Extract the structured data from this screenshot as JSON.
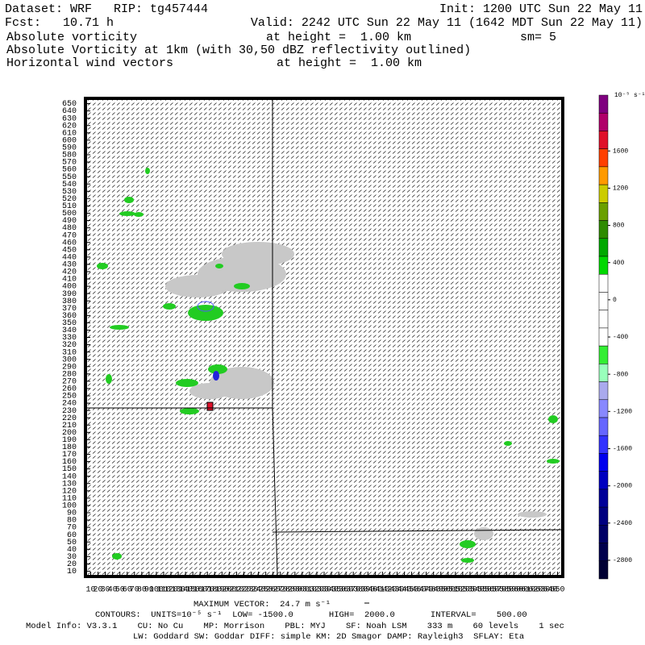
{
  "header": {
    "dataset": "Dataset: WRF   RIP: tg457444",
    "init": "Init: 1200 UTC Sun 22 May 11",
    "fcst": "Fcst:   10.71 h",
    "valid": "Valid: 2242 UTC Sun 22 May 11 (1642 MDT Sun 22 May 11)",
    "field1": "Absolute vorticity",
    "field1_height": "at height =  1.00 km",
    "smoothing": "sm= 5",
    "field2": "Absolute Vorticity at 1km (with 30,50 dBZ reflectivity outlined)",
    "field3": "Horizontal wind vectors",
    "field3_height": "at height =  1.00 km"
  },
  "axes": {
    "lim": [
      5,
      655
    ],
    "yticks": [
      10,
      20,
      30,
      40,
      50,
      60,
      70,
      80,
      90,
      100,
      110,
      120,
      130,
      140,
      150,
      160,
      170,
      180,
      190,
      200,
      210,
      220,
      230,
      240,
      250,
      260,
      270,
      280,
      290,
      300,
      310,
      320,
      330,
      340,
      350,
      360,
      370,
      380,
      390,
      400,
      410,
      420,
      430,
      440,
      450,
      460,
      470,
      480,
      490,
      500,
      510,
      520,
      530,
      540,
      550,
      560,
      570,
      580,
      590,
      600,
      610,
      620,
      630,
      640,
      650
    ],
    "xticks": [
      10,
      20,
      30,
      40,
      50,
      60,
      70,
      80,
      90,
      100,
      110,
      120,
      130,
      140,
      150,
      160,
      170,
      180,
      190,
      200,
      210,
      220,
      230,
      240,
      250,
      260,
      270,
      280,
      290,
      300,
      310,
      320,
      330,
      340,
      350,
      360,
      370,
      380,
      390,
      400,
      410,
      420,
      430,
      440,
      450,
      460,
      470,
      480,
      490,
      500,
      510,
      520,
      530,
      540,
      550,
      560,
      570,
      580,
      590,
      600,
      610,
      620,
      630,
      640,
      650
    ]
  },
  "colorbar": {
    "unit": "10⁻⁵ s⁻¹",
    "lim": [
      -3000,
      2200
    ],
    "ticks": [
      1600,
      1200,
      800,
      400,
      0,
      -400,
      -800,
      -1200,
      -1600,
      -2000,
      -2400,
      -2800
    ],
    "colors": [
      "#7f007f",
      "#b0006a",
      "#e0102a",
      "#ff4000",
      "#ff9a00",
      "#cccc00",
      "#6aa000",
      "#2e8b00",
      "#00a800",
      "#00d800",
      "#ffffff",
      "#ffffff",
      "#ffffff",
      "#ffffff",
      "#33ee33",
      "#99ffbb",
      "#aaaaee",
      "#8888ff",
      "#6666ff",
      "#3333ff",
      "#0000ee",
      "#0000c0",
      "#000099",
      "#000080",
      "#000066",
      "#00004d",
      "#000033"
    ]
  },
  "footer": {
    "max_vector": "MAXIMUM VECTOR:  24.7 m s⁻¹",
    "contours": "CONTOURS:  UNITS=10⁻⁵ s⁻¹  LOW= -1500.0       HIGH=  2000.0       INTERVAL=    500.00",
    "model_info": "Model Info: V3.3.1    CU: No Cu    MP: Morrison    PBL: MYJ    SF: Noah LSM    333 m    60 levels    1 sec",
    "physics": "LW: Goddard SW: Goddar DIFF: simple KM: 2D Smagor DAMP: Rayleigh3  SFLAY: Eta"
  }
}
